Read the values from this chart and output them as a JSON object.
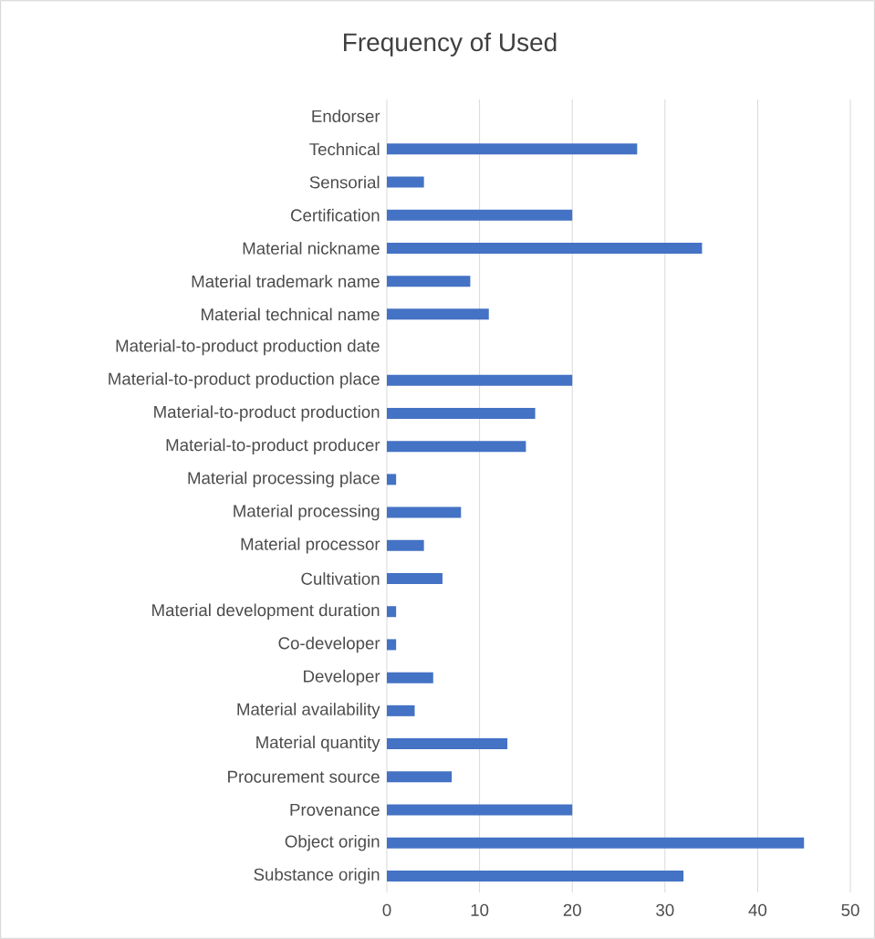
{
  "chart_data": {
    "type": "bar",
    "orientation": "horizontal",
    "title": "Frequency of Used",
    "categories": [
      "Endorser",
      "Technical",
      "Sensorial",
      "Certification",
      "Material nickname",
      "Material trademark name",
      "Material technical name",
      "Material-to-product production date",
      "Material-to-product production place",
      "Material-to-product production",
      "Material-to-product producer",
      "Material processing place",
      "Material processing",
      "Material processor",
      "Cultivation",
      "Material development duration",
      "Co-developer",
      "Developer",
      "Material availability",
      "Material quantity",
      "Procurement source",
      "Provenance",
      "Object origin",
      "Substance origin"
    ],
    "values": [
      0,
      27,
      4,
      20,
      34,
      9,
      11,
      0,
      20,
      16,
      15,
      1,
      8,
      4,
      6,
      1,
      1,
      5,
      3,
      13,
      7,
      20,
      45,
      32
    ],
    "color": "#4472c4",
    "xlim": [
      0,
      50
    ],
    "xticks": [
      0,
      10,
      20,
      30,
      40,
      50
    ],
    "grid": "x"
  }
}
